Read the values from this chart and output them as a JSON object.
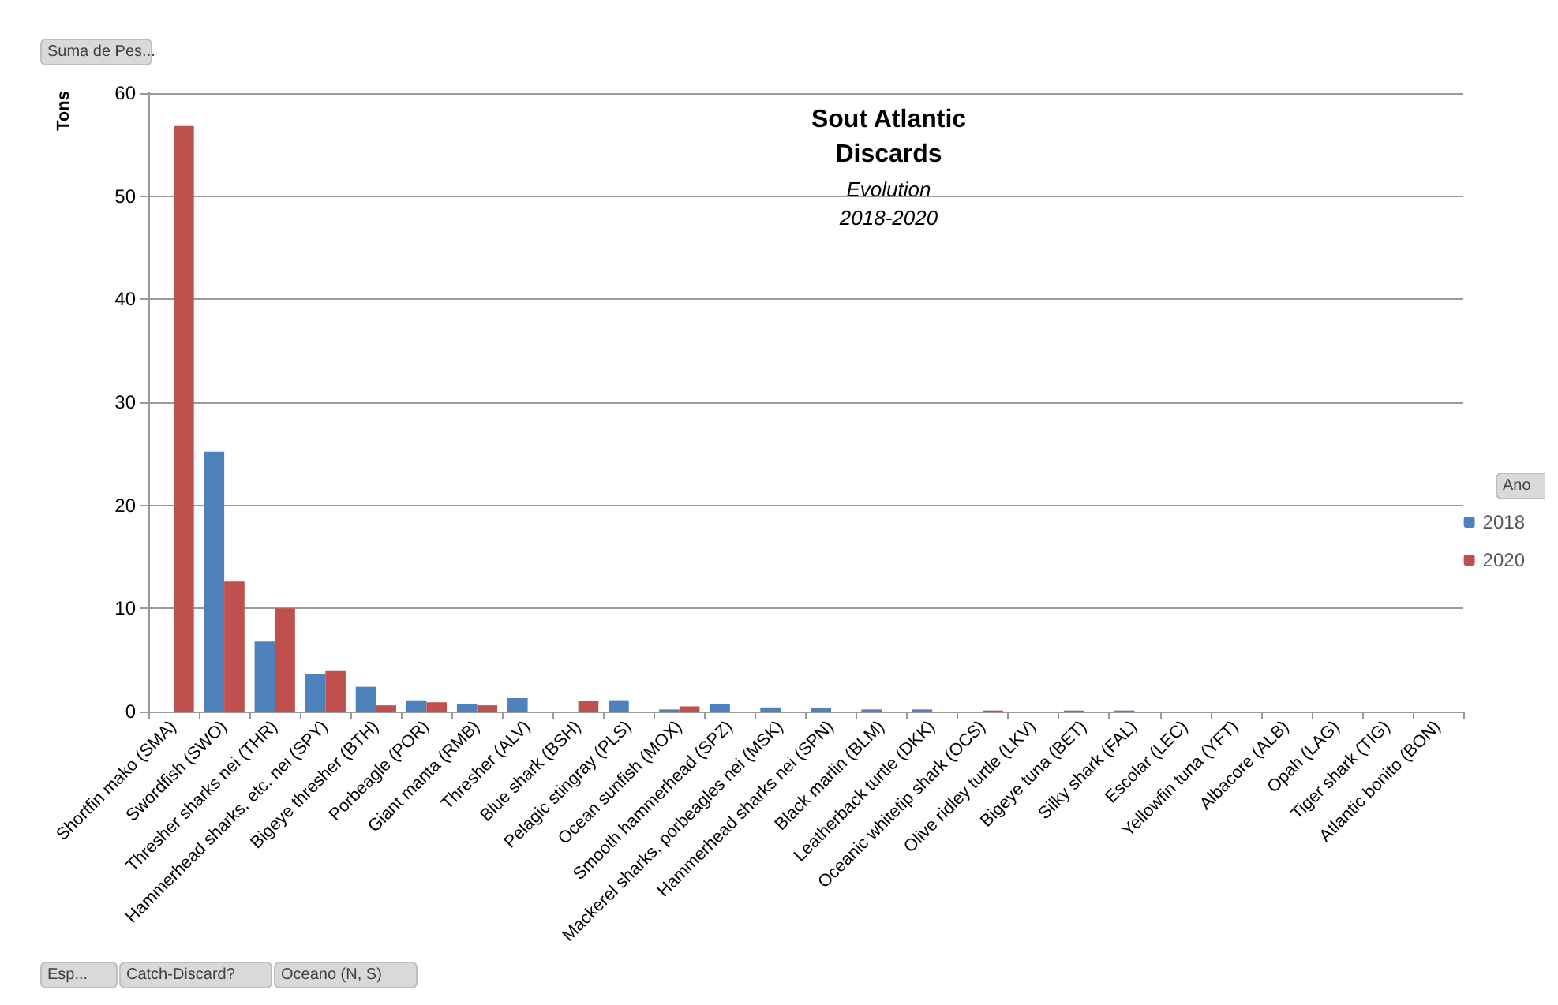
{
  "chart_data": {
    "type": "bar",
    "title": "Sout Atlantic\nDiscards",
    "subtitle": "Evolution\n2018-2020",
    "ylabel": "Tons",
    "legend_title": "Ano",
    "categories": [
      "Shortfin mako (SMA)",
      "Swordfish (SWO)",
      "Thresher sharks nei (THR)",
      "Hammerhead sharks, etc. nei (SPY)",
      "Bigeye thresher (BTH)",
      "Porbeagle (POR)",
      "Giant manta (RMB)",
      "Thresher (ALV)",
      "Blue shark (BSH)",
      "Pelagic stingray (PLS)",
      "Ocean sunfish (MOX)",
      "Smooth hammerhead (SPZ)",
      "Mackerel sharks, porbeagles nei (MSK)",
      "Hammerhead sharks nei (SPN)",
      "Black marlin (BLM)",
      "Leatherback turtle (DKK)",
      "Oceanic whitetip shark (OCS)",
      "Olive ridley turtle (LKV)",
      "Bigeye tuna (BET)",
      "Silky shark (FAL)",
      "Escolar (LEC)",
      "Yellowfin tuna (YFT)",
      "Albacore (ALB)",
      "Opah (LAG)",
      "Tiger shark (TIG)",
      "Atlantic bonito (BON)"
    ],
    "series": [
      {
        "name": "2018",
        "color": "#4f81bd",
        "values": [
          null,
          25.2,
          6.8,
          3.6,
          2.4,
          1.1,
          0.7,
          1.3,
          null,
          1.1,
          0.2,
          0.7,
          0.4,
          0.3,
          0.2,
          0.2,
          null,
          null,
          0.1,
          0.1,
          null,
          null,
          null,
          null,
          null,
          null
        ]
      },
      {
        "name": "2020",
        "color": "#c0504d",
        "values": [
          56.8,
          12.6,
          10.0,
          4.0,
          0.6,
          0.9,
          0.6,
          null,
          1.0,
          null,
          0.5,
          null,
          null,
          null,
          null,
          null,
          0.1,
          null,
          null,
          null,
          null,
          null,
          null,
          null,
          null,
          null
        ]
      }
    ],
    "ylim": [
      0,
      60
    ],
    "yticks": [
      0,
      10,
      20,
      30,
      40,
      50,
      60
    ],
    "grid": "y",
    "legend": "right",
    "annotations": [
      "Suma de Pes...",
      "Esp...",
      "Catch-Discard?",
      "Oceano (N, S)"
    ]
  }
}
